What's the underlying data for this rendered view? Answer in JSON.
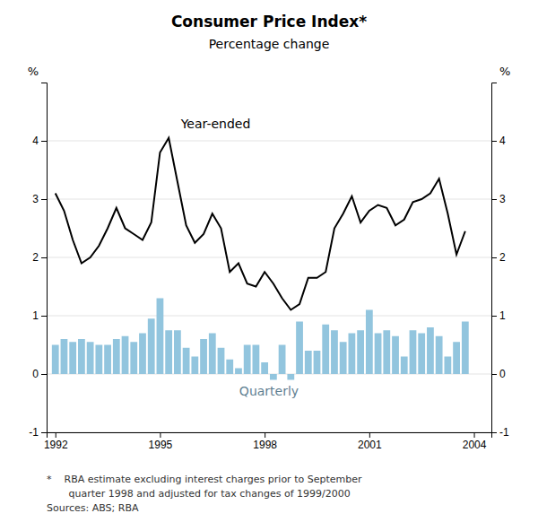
{
  "chart_data": {
    "type": "bar",
    "title": "Consumer Price Index*",
    "subtitle": "Percentage change",
    "ylabel": "%",
    "y2label": "%",
    "footnote": [
      "*    RBA estimate excluding interest charges prior to September",
      "       quarter 1998 and adjusted for tax changes of 1999/2000",
      "Sources: ABS; RBA"
    ],
    "x": [
      1992.0,
      1992.25,
      1992.5,
      1992.75,
      1993.0,
      1993.25,
      1993.5,
      1993.75,
      1994.0,
      1994.25,
      1994.5,
      1994.75,
      1995.0,
      1995.25,
      1995.5,
      1995.75,
      1996.0,
      1996.25,
      1996.5,
      1996.75,
      1997.0,
      1997.25,
      1997.5,
      1997.75,
      1998.0,
      1998.25,
      1998.5,
      1998.75,
      1999.0,
      1999.25,
      1999.5,
      1999.75,
      2000.0,
      2000.25,
      2000.5,
      2000.75,
      2001.0,
      2001.25,
      2001.5,
      2001.75,
      2002.0,
      2002.25,
      2002.5,
      2002.75,
      2003.0,
      2003.25,
      2003.5,
      2003.75
    ],
    "series": [
      {
        "name": "Quarterly",
        "type": "bar",
        "color": "#92c5de",
        "values": [
          0.5,
          0.6,
          0.55,
          0.6,
          0.55,
          0.5,
          0.5,
          0.6,
          0.65,
          0.55,
          0.7,
          0.95,
          1.3,
          0.75,
          0.75,
          0.45,
          0.3,
          0.6,
          0.7,
          0.45,
          0.25,
          0.1,
          0.5,
          0.5,
          0.2,
          -0.1,
          0.5,
          -0.1,
          0.9,
          0.4,
          0.4,
          0.85,
          0.75,
          0.55,
          0.7,
          0.75,
          1.1,
          0.7,
          0.75,
          0.65,
          0.3,
          0.75,
          0.7,
          0.8,
          0.65,
          0.3,
          0.55,
          0.9
        ]
      },
      {
        "name": "Year-ended",
        "type": "line",
        "color": "#000000",
        "values": [
          3.1,
          2.8,
          2.3,
          1.9,
          2.0,
          2.2,
          2.5,
          2.85,
          2.5,
          2.4,
          2.3,
          2.6,
          3.8,
          4.05,
          3.3,
          2.55,
          2.25,
          2.4,
          2.75,
          2.5,
          1.75,
          1.9,
          1.55,
          1.5,
          1.75,
          1.55,
          1.3,
          1.1,
          1.2,
          1.65,
          1.65,
          1.75,
          2.5,
          2.75,
          3.05,
          2.6,
          2.8,
          2.9,
          2.85,
          2.55,
          2.65,
          2.95,
          3.0,
          3.1,
          3.35,
          2.75,
          2.05,
          2.45
        ]
      }
    ],
    "xlim": [
      1991.75,
      2004.5
    ],
    "xticks": [
      1992,
      1995,
      1998,
      2001,
      2004
    ],
    "ylim": [
      -1,
      5
    ],
    "yticks": [
      -1,
      0,
      1,
      2,
      3,
      4
    ],
    "y2lim": [
      -1,
      5
    ],
    "y2ticks": [
      -1,
      0,
      1,
      2,
      3,
      4
    ],
    "grid": true
  }
}
